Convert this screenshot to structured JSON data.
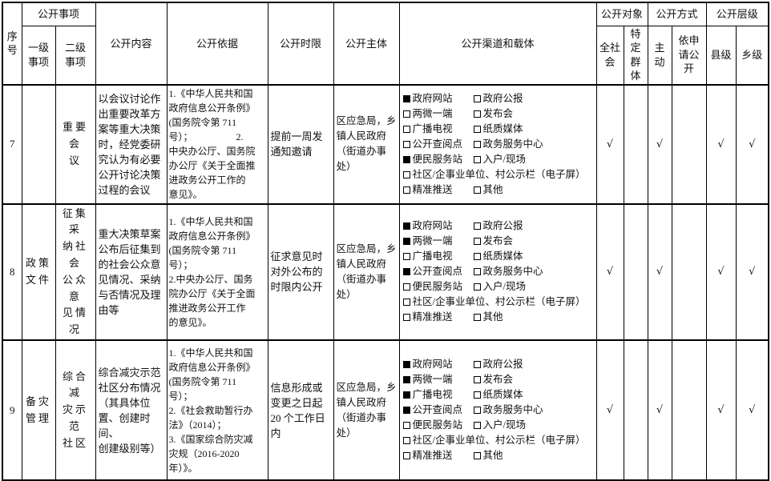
{
  "headers": {
    "serial": "序\n号",
    "items": "公开事项",
    "level1": "一级\n事项",
    "level2": "二级\n事项",
    "content": "公开内容",
    "basis": "公开依据",
    "time_limit": "公开时限",
    "subject": "公开主体",
    "channels": "公开渠道和载体",
    "audience": "公开对象",
    "all_society": "全社\n会",
    "specific_group": "特定\n群体",
    "method": "公开方式",
    "proactive": "主动",
    "on_request": "依申\n请公\n开",
    "level": "公开层级",
    "county": "县级",
    "township": "乡级"
  },
  "check_mark": "√",
  "rows": [
    {
      "no": "7",
      "level1": "",
      "level2": "重要会\n议",
      "content": "以会议讨论作\n出重要改革方\n案等重大决策\n时，经党委研\n究认为有必要\n公开讨论决策\n过程的会议",
      "basis": "1.《中华人民共和国\n政府信息公开条例》\n(国务院令第 711\n号）；　　　　　2.\n中央办公厅、国务院\n办公厅《关于全面推\n进政务公开工作的\n意见》。",
      "time_limit": "提前一周发\n通知邀请",
      "subject": "区应急局，乡\n镇人民政府\n（街道办事\n处）",
      "channels": [
        [
          {
            "label": "政府网站",
            "checked": true
          },
          {
            "label": "政府公报",
            "checked": false
          }
        ],
        [
          {
            "label": "两微一端",
            "checked": false
          },
          {
            "label": "发布会",
            "checked": false
          }
        ],
        [
          {
            "label": "广播电视",
            "checked": false
          },
          {
            "label": "纸质媒体",
            "checked": false
          }
        ],
        [
          {
            "label": "公开查阅点",
            "checked": false
          },
          {
            "label": "政务服务中心",
            "checked": false
          }
        ],
        [
          {
            "label": "便民服务站",
            "checked": true
          },
          {
            "label": "入户/现场",
            "checked": false
          }
        ],
        [
          {
            "label": "社区/企事业单位、村公示栏（电子屏）",
            "checked": false
          }
        ],
        [
          {
            "label": "精准推送",
            "checked": false
          },
          {
            "label": "其他",
            "checked": false
          }
        ]
      ],
      "marks": {
        "all_society": "√",
        "specific_group": "",
        "proactive": "√",
        "on_request": "",
        "county": "√",
        "township": "√"
      }
    },
    {
      "no": "8",
      "level1": "政策\n文件",
      "level2": "征集采\n纳社会\n公众意\n见情况",
      "content": "重大决策草案\n公布后征集到\n的社会公众意\n见情况、采纳\n与否情况及理\n由等",
      "basis": "1.《中华人民共和国\n政府信息公开条例》\n(国务院令第 711\n号）；\n2.中央办公厅、国务\n院办公厅《关于全面\n推进政务公开工作\n的意见》。",
      "time_limit": "征求意见时\n对外公布的\n时限内公开",
      "subject": "区应急局，乡\n镇人民政府\n（街道办事\n处）",
      "channels": [
        [
          {
            "label": "政府网站",
            "checked": true
          },
          {
            "label": "政府公报",
            "checked": false
          }
        ],
        [
          {
            "label": "两微一端",
            "checked": true
          },
          {
            "label": "发布会",
            "checked": false
          }
        ],
        [
          {
            "label": "广播电视",
            "checked": false
          },
          {
            "label": "纸质媒体",
            "checked": false
          }
        ],
        [
          {
            "label": "公开查阅点",
            "checked": true
          },
          {
            "label": "政务服务中心",
            "checked": false
          }
        ],
        [
          {
            "label": "便民服务站",
            "checked": false
          },
          {
            "label": "入户/现场",
            "checked": false
          }
        ],
        [
          {
            "label": "社区/企事业单位、村公示栏（电子屏）",
            "checked": false
          }
        ],
        [
          {
            "label": "精准推送",
            "checked": false
          },
          {
            "label": "其他",
            "checked": false
          }
        ]
      ],
      "marks": {
        "all_society": "√",
        "specific_group": "",
        "proactive": "√",
        "on_request": "",
        "county": "√",
        "township": "√"
      }
    },
    {
      "no": "9",
      "level1": "备灾\n管理",
      "level2": "综合减\n灾示范\n社区",
      "content": "综合减灾示范\n社区分布情况\n（其具体位\n置、创建时间、\n创建级别等）",
      "basis": "1.《中华人民共和国\n政府信息公开条例》\n(国务院令第 711\n号）；\n2.《社会救助暂行办\n法》（2014）；\n3.《国家综合防灾减\n灾规（2016-2020\n年）》。",
      "time_limit": "信息形成或\n变更之日起\n20 个工作日\n内",
      "subject": "区应急局，乡\n镇人民政府\n（街道办事\n处）",
      "channels": [
        [
          {
            "label": "政府网站",
            "checked": true
          },
          {
            "label": "政府公报",
            "checked": false
          }
        ],
        [
          {
            "label": "两微一端",
            "checked": true
          },
          {
            "label": "发布会",
            "checked": false
          }
        ],
        [
          {
            "label": "广播电视",
            "checked": true
          },
          {
            "label": "纸质媒体",
            "checked": false
          }
        ],
        [
          {
            "label": "公开查阅点",
            "checked": true
          },
          {
            "label": "政务服务中心",
            "checked": false
          }
        ],
        [
          {
            "label": "便民服务站",
            "checked": false
          },
          {
            "label": "入户/现场",
            "checked": false
          }
        ],
        [
          {
            "label": "社区/企事业单位、村公示栏（电子屏）",
            "checked": false
          }
        ],
        [
          {
            "label": "精准推送",
            "checked": false
          },
          {
            "label": "其他",
            "checked": false
          }
        ]
      ],
      "marks": {
        "all_society": "√",
        "specific_group": "",
        "proactive": "√",
        "on_request": "",
        "county": "√",
        "township": "√"
      }
    }
  ]
}
